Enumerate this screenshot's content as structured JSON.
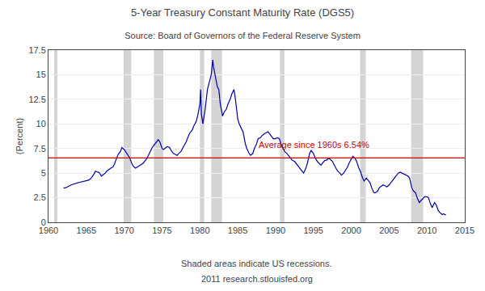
{
  "chart_data": {
    "type": "line",
    "title": "5-Year Treasury Constant Maturity Rate (DGS5)",
    "subtitle": "Source: Board of Governors of the Federal Reserve System",
    "ylabel": "(Percent)",
    "footer": [
      "Shaded areas indicate US recessions.",
      "2011 research.stlouisfed.org"
    ],
    "xlim": [
      1960,
      2015
    ],
    "ylim": [
      0.0,
      17.5
    ],
    "xticks": [
      1960,
      1965,
      1970,
      1975,
      1980,
      1985,
      1990,
      1995,
      2000,
      2005,
      2010,
      2015
    ],
    "yticks": [
      0,
      2.5,
      5,
      7.5,
      10,
      12.5,
      15,
      17.5
    ],
    "grid": "y",
    "color": "#0000AA",
    "average": {
      "value": 6.54,
      "color": "#CC0000"
    },
    "annotations": [
      {
        "text": "Average since 1960s 6.54%",
        "x": 1987.5,
        "y": 7.2,
        "color": "#CC0000"
      }
    ],
    "recessions": {
      "color": "#AAAAAA",
      "periods": [
        [
          1960.75,
          1961.17
        ],
        [
          1969.92,
          1970.92
        ],
        [
          1973.92,
          1975.17
        ],
        [
          1980.0,
          1980.58
        ],
        [
          1981.5,
          1982.92
        ],
        [
          1990.58,
          1991.17
        ],
        [
          2001.17,
          2001.92
        ],
        [
          2007.92,
          2009.5
        ]
      ]
    },
    "x": [
      1962.0,
      1962.1,
      1962.3,
      1962.5,
      1962.8,
      1963.0,
      1963.3,
      1963.5,
      1963.8,
      1964.0,
      1964.2,
      1964.5,
      1964.7,
      1965.0,
      1965.3,
      1965.5,
      1965.7,
      1966.0,
      1966.2,
      1966.5,
      1966.7,
      1967.0,
      1967.2,
      1967.5,
      1967.7,
      1968.0,
      1968.3,
      1968.5,
      1968.7,
      1969.0,
      1969.2,
      1969.5,
      1969.7,
      1970.0,
      1970.2,
      1970.5,
      1970.7,
      1971.0,
      1971.2,
      1971.5,
      1971.7,
      1972.0,
      1972.3,
      1972.5,
      1972.7,
      1973.0,
      1973.2,
      1973.5,
      1973.7,
      1974.0,
      1974.2,
      1974.5,
      1974.7,
      1975.0,
      1975.2,
      1975.5,
      1975.7,
      1976.0,
      1976.2,
      1976.5,
      1976.7,
      1977.0,
      1977.2,
      1977.5,
      1977.7,
      1978.0,
      1978.2,
      1978.5,
      1978.7,
      1979.0,
      1979.2,
      1979.5,
      1979.7,
      1980.0,
      1980.1,
      1980.2,
      1980.4,
      1980.5,
      1980.7,
      1981.0,
      1981.2,
      1981.5,
      1981.7,
      1981.8,
      1982.0,
      1982.1,
      1982.3,
      1982.5,
      1982.7,
      1983.0,
      1983.2,
      1983.5,
      1983.7,
      1984.0,
      1984.2,
      1984.5,
      1984.7,
      1985.0,
      1985.2,
      1985.5,
      1985.7,
      1986.0,
      1986.2,
      1986.5,
      1986.7,
      1987.0,
      1987.2,
      1987.5,
      1987.7,
      1988.0,
      1988.2,
      1988.5,
      1988.7,
      1989.0,
      1989.2,
      1989.5,
      1989.7,
      1990.0,
      1990.2,
      1990.5,
      1990.7,
      1991.0,
      1991.2,
      1991.5,
      1991.7,
      1992.0,
      1992.2,
      1992.5,
      1992.7,
      1993.0,
      1993.2,
      1993.5,
      1993.7,
      1994.0,
      1994.2,
      1994.5,
      1994.7,
      1995.0,
      1995.2,
      1995.5,
      1995.7,
      1996.0,
      1996.2,
      1996.5,
      1996.7,
      1997.0,
      1997.2,
      1997.5,
      1997.7,
      1998.0,
      1998.2,
      1998.5,
      1998.7,
      1999.0,
      1999.2,
      1999.5,
      1999.7,
      2000.0,
      2000.2,
      2000.5,
      2000.7,
      2001.0,
      2001.2,
      2001.5,
      2001.7,
      2002.0,
      2002.2,
      2002.5,
      2002.7,
      2003.0,
      2003.2,
      2003.5,
      2003.7,
      2004.0,
      2004.2,
      2004.5,
      2004.7,
      2005.0,
      2005.2,
      2005.5,
      2005.7,
      2006.0,
      2006.2,
      2006.5,
      2006.7,
      2007.0,
      2007.2,
      2007.5,
      2007.7,
      2008.0,
      2008.2,
      2008.5,
      2008.7,
      2009.0,
      2009.2,
      2009.5,
      2009.7,
      2010.0,
      2010.2,
      2010.5,
      2010.7,
      2011.0,
      2011.2,
      2011.5,
      2011.7,
      2012.0,
      2012.2,
      2012.5
    ],
    "values": [
      3.54,
      3.48,
      3.52,
      3.62,
      3.7,
      3.8,
      3.88,
      3.95,
      4.0,
      4.05,
      4.08,
      4.1,
      4.15,
      4.2,
      4.28,
      4.4,
      4.55,
      4.9,
      5.2,
      5.1,
      5.05,
      4.7,
      4.8,
      5.0,
      5.2,
      5.4,
      5.55,
      5.6,
      5.9,
      6.5,
      6.9,
      7.2,
      7.6,
      7.4,
      7.2,
      6.8,
      6.6,
      6.0,
      5.7,
      5.5,
      5.6,
      5.8,
      5.9,
      6.0,
      6.2,
      6.5,
      6.8,
      7.3,
      7.6,
      7.9,
      8.1,
      8.4,
      8.2,
      7.5,
      7.4,
      7.6,
      7.7,
      7.6,
      7.3,
      7.0,
      6.9,
      6.8,
      7.0,
      7.2,
      7.5,
      7.9,
      8.2,
      8.8,
      9.1,
      9.4,
      9.8,
      10.2,
      10.8,
      12.0,
      13.5,
      11.0,
      10.0,
      10.5,
      11.5,
      13.5,
      14.2,
      15.0,
      16.5,
      15.8,
      15.0,
      14.5,
      13.8,
      13.5,
      12.0,
      10.8,
      11.2,
      11.5,
      12.0,
      12.5,
      13.0,
      13.5,
      12.5,
      10.5,
      10.0,
      9.5,
      9.2,
      8.0,
      7.5,
      7.0,
      6.8,
      7.0,
      7.5,
      8.0,
      8.5,
      8.6,
      8.8,
      9.0,
      9.1,
      9.2,
      9.0,
      8.7,
      8.5,
      8.5,
      8.6,
      8.5,
      8.0,
      7.5,
      7.2,
      7.0,
      6.8,
      6.5,
      6.3,
      6.2,
      6.0,
      5.6,
      5.4,
      5.2,
      5.0,
      5.5,
      6.0,
      7.0,
      7.3,
      7.0,
      6.6,
      6.2,
      6.0,
      5.8,
      6.0,
      6.3,
      6.3,
      6.5,
      6.4,
      6.2,
      5.9,
      5.5,
      5.2,
      5.0,
      4.8,
      5.0,
      5.2,
      5.6,
      6.0,
      6.5,
      6.7,
      6.5,
      6.2,
      5.5,
      5.2,
      4.5,
      4.2,
      4.5,
      4.3,
      4.0,
      3.5,
      3.0,
      3.0,
      3.2,
      3.5,
      3.7,
      3.8,
      3.7,
      3.6,
      3.8,
      4.0,
      4.2,
      4.4,
      4.8,
      5.0,
      5.1,
      5.0,
      4.9,
      4.8,
      4.7,
      4.5,
      3.5,
      3.2,
      3.0,
      2.5,
      2.0,
      2.2,
      2.5,
      2.6,
      2.6,
      2.5,
      1.8,
      1.5,
      2.0,
      1.8,
      1.2,
      1.0,
      0.8,
      0.85,
      0.75
    ]
  }
}
